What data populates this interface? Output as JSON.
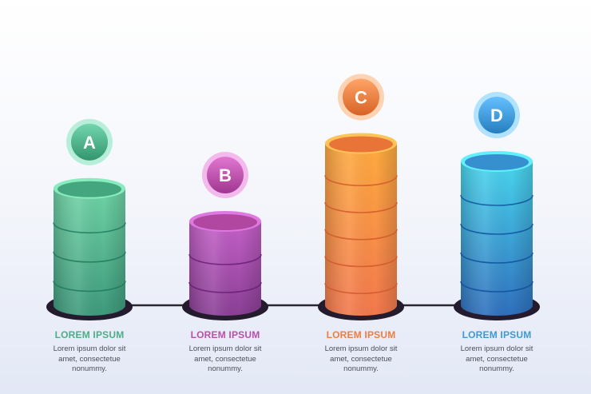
{
  "chart_data": {
    "type": "bar",
    "categories": [
      "A",
      "B",
      "C",
      "D"
    ],
    "values": [
      195,
      140,
      270,
      240
    ],
    "colors": {
      "A": {
        "top": "#6fd3a6",
        "bottom": "#3e9a7c",
        "accent": "#4cae86"
      },
      "B": {
        "top": "#c560c9",
        "bottom": "#8a3f95",
        "accent": "#b94fa9"
      },
      "C": {
        "top": "#ffab3f",
        "bottom": "#f3784e",
        "accent": "#f07c3f"
      },
      "D": {
        "top": "#49d6ee",
        "bottom": "#2f6fbd",
        "accent": "#3e98d8"
      }
    },
    "grid": false
  },
  "items": [
    {
      "letter": "A",
      "title": "LOREM IPSUM",
      "desc": [
        "Lorem ipsum dolor sit",
        "amet, consectetue",
        "nonummy."
      ]
    },
    {
      "letter": "B",
      "title": "LOREM IPSUM",
      "desc": [
        "Lorem ipsum dolor sit",
        "amet, consectetue",
        "nonummy."
      ]
    },
    {
      "letter": "C",
      "title": "LOREM IPSUM",
      "desc": [
        "Lorem ipsum dolor sit",
        "amet, consectetue",
        "nonummy."
      ]
    },
    {
      "letter": "D",
      "title": "LOREM IPSUM",
      "desc": [
        "Lorem ipsum dolor sit",
        "amet, consectetue",
        "nonummy."
      ]
    }
  ]
}
